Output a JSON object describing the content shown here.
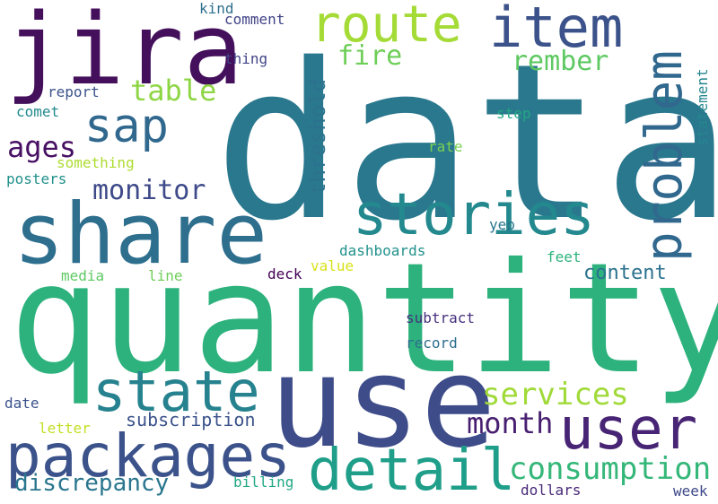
{
  "words": [
    {
      "text": "data",
      "color": "#2a788e"
    },
    {
      "text": "quantity",
      "color": "#2db27d"
    },
    {
      "text": "use",
      "color": "#3e4c8a"
    },
    {
      "text": "share",
      "color": "#2e6f8e"
    },
    {
      "text": "jira",
      "color": "#440f5b"
    },
    {
      "text": "packages",
      "color": "#3b528b"
    },
    {
      "text": "stories",
      "color": "#23898e"
    },
    {
      "text": "detail",
      "color": "#1f9e89"
    },
    {
      "text": "user",
      "color": "#482475"
    },
    {
      "text": "state",
      "color": "#26828e"
    },
    {
      "text": "route",
      "color": "#a5db36"
    },
    {
      "text": "item",
      "color": "#3b528b"
    },
    {
      "text": "problem",
      "color": "#31688e"
    },
    {
      "text": "sap",
      "color": "#31688e"
    },
    {
      "text": "consumption",
      "color": "#35b779"
    },
    {
      "text": "services",
      "color": "#a0da39"
    },
    {
      "text": "month",
      "color": "#481f70"
    },
    {
      "text": "threshold",
      "color": "#2c728e"
    },
    {
      "text": "discrepancy",
      "color": "#2a768e"
    },
    {
      "text": "monitor",
      "color": "#3e4a89"
    },
    {
      "text": "table",
      "color": "#8ed645"
    },
    {
      "text": "rember",
      "color": "#5ec962"
    },
    {
      "text": "fire",
      "color": "#6ece58"
    },
    {
      "text": "ages",
      "color": "#471063"
    },
    {
      "text": "subscription",
      "color": "#3b528b"
    },
    {
      "text": "content",
      "color": "#2c728e"
    },
    {
      "text": "statement",
      "color": "#24868e"
    },
    {
      "text": "comment",
      "color": "#414487"
    },
    {
      "text": "kind",
      "color": "#2d708e"
    },
    {
      "text": "thing",
      "color": "#414487"
    },
    {
      "text": "report",
      "color": "#3b528b"
    },
    {
      "text": "comet",
      "color": "#23898e"
    },
    {
      "text": "something",
      "color": "#addc30"
    },
    {
      "text": "posters",
      "color": "#21918c"
    },
    {
      "text": "step",
      "color": "#22a884"
    },
    {
      "text": "rate",
      "color": "#7ad151"
    },
    {
      "text": "yep",
      "color": "#2a788e"
    },
    {
      "text": "dashboards",
      "color": "#21918c"
    },
    {
      "text": "feet",
      "color": "#2db27d"
    },
    {
      "text": "media",
      "color": "#5ec962"
    },
    {
      "text": "line",
      "color": "#6ece58"
    },
    {
      "text": "deck",
      "color": "#440154"
    },
    {
      "text": "value",
      "color": "#d8e219"
    },
    {
      "text": "subtract",
      "color": "#46307e"
    },
    {
      "text": "record",
      "color": "#2e6e8e"
    },
    {
      "text": "date",
      "color": "#3b528b"
    },
    {
      "text": "letter",
      "color": "#c2df23"
    },
    {
      "text": "billing",
      "color": "#22a884"
    },
    {
      "text": "dollars",
      "color": "#482878"
    },
    {
      "text": "week",
      "color": "#3e4989"
    }
  ]
}
